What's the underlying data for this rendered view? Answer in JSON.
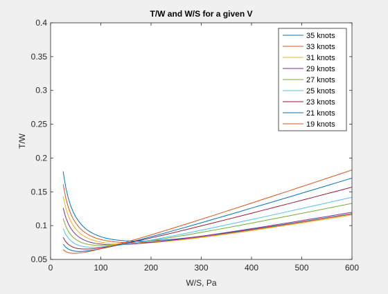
{
  "chart_data": {
    "type": "line",
    "title": "T/W and W/S for a given V",
    "xlabel": "W/S, Pa",
    "ylabel": "T/W",
    "xlim": [
      0,
      600
    ],
    "ylim": [
      0.05,
      0.4
    ],
    "xticks": [
      0,
      100,
      200,
      300,
      400,
      500,
      600
    ],
    "yticks": [
      0.05,
      0.1,
      0.15,
      0.2,
      0.25,
      0.3,
      0.35,
      0.4
    ],
    "xtick_labels": [
      "0",
      "100",
      "200",
      "300",
      "400",
      "500",
      "600"
    ],
    "ytick_labels": [
      "0.05",
      "0.1",
      "0.15",
      "0.2",
      "0.25",
      "0.3",
      "0.35",
      "0.4"
    ],
    "grid": false,
    "legend_position": "top-right",
    "x": [
      25,
      30,
      35,
      40,
      45,
      50,
      55,
      60,
      65,
      70,
      75,
      80,
      85,
      90,
      95,
      100,
      110,
      120,
      130,
      140,
      150,
      160,
      170,
      180,
      190,
      200,
      225,
      250,
      275,
      300,
      325,
      350,
      375,
      400,
      425,
      450,
      475,
      500,
      525,
      550,
      575,
      600
    ],
    "series": [
      {
        "name": "35 knots",
        "color": "#0072bd",
        "values": [
          0.1803,
          0.1573,
          0.1413,
          0.1294,
          0.1203,
          0.1131,
          0.1074,
          0.1026,
          0.0986,
          0.0953,
          0.0925,
          0.0902,
          0.0882,
          0.0864,
          0.0849,
          0.0836,
          0.0815,
          0.0799,
          0.0788,
          0.078,
          0.0775,
          0.0772,
          0.0771,
          0.0771,
          0.0773,
          0.0776,
          0.0787,
          0.0802,
          0.0821,
          0.0843,
          0.0866,
          0.0891,
          0.0917,
          0.0944,
          0.0972,
          0.1,
          0.1029,
          0.1058,
          0.1087,
          0.1117,
          0.1147,
          0.1177
        ]
      },
      {
        "name": "33 knots",
        "color": "#d95319",
        "values": [
          0.1612,
          0.1415,
          0.1278,
          0.1177,
          0.1099,
          0.1039,
          0.099,
          0.095,
          0.0917,
          0.0889,
          0.0866,
          0.0847,
          0.083,
          0.0816,
          0.0804,
          0.0794,
          0.0777,
          0.0766,
          0.0758,
          0.0752,
          0.075,
          0.0749,
          0.0749,
          0.0751,
          0.0754,
          0.0758,
          0.0771,
          0.0788,
          0.0809,
          0.0831,
          0.0855,
          0.0881,
          0.0908,
          0.0936,
          0.0964,
          0.0993,
          0.1022,
          0.1051,
          0.1081,
          0.1111,
          0.1141,
          0.1172
        ]
      },
      {
        "name": "31 knots",
        "color": "#edb120",
        "values": [
          0.1433,
          0.1267,
          0.1151,
          0.1066,
          0.1001,
          0.0951,
          0.0911,
          0.0879,
          0.0852,
          0.0829,
          0.0811,
          0.0796,
          0.0783,
          0.0772,
          0.0763,
          0.0755,
          0.0744,
          0.0736,
          0.0731,
          0.0729,
          0.0729,
          0.073,
          0.0733,
          0.0737,
          0.0741,
          0.0747,
          0.0762,
          0.078,
          0.0801,
          0.0824,
          0.0848,
          0.0873,
          0.0899,
          0.0926,
          0.0954,
          0.0982,
          0.101,
          0.1039,
          0.1068,
          0.1097,
          0.1127,
          0.1157
        ]
      },
      {
        "name": "29 knots",
        "color": "#7e2f8e",
        "values": [
          0.1263,
          0.1126,
          0.1032,
          0.0963,
          0.0911,
          0.0871,
          0.0839,
          0.0814,
          0.0794,
          0.0777,
          0.0763,
          0.0752,
          0.0743,
          0.0736,
          0.073,
          0.0726,
          0.0719,
          0.0716,
          0.0716,
          0.0718,
          0.0721,
          0.0726,
          0.0732,
          0.0738,
          0.0745,
          0.0752,
          0.0772,
          0.0794,
          0.0818,
          0.0843,
          0.087,
          0.0898,
          0.0926,
          0.0955,
          0.0984,
          0.1014,
          0.1044,
          0.1074,
          0.1105,
          0.1135,
          0.1166,
          0.1197
        ]
      },
      {
        "name": "27 knots",
        "color": "#77ac30",
        "values": [
          0.1105,
          0.0995,
          0.092,
          0.0866,
          0.0826,
          0.0796,
          0.0773,
          0.0755,
          0.0741,
          0.073,
          0.0722,
          0.0716,
          0.0712,
          0.0709,
          0.0707,
          0.0706,
          0.0707,
          0.0711,
          0.0716,
          0.0722,
          0.073,
          0.0738,
          0.0747,
          0.0757,
          0.0767,
          0.0778,
          0.0806,
          0.0836,
          0.0867,
          0.09,
          0.0933,
          0.0967,
          0.1002,
          0.1037,
          0.1073,
          0.1109,
          0.1145,
          0.1182,
          0.1218,
          0.1255,
          0.1292,
          0.1329
        ]
      },
      {
        "name": "25 knots",
        "color": "#4dbeee",
        "values": [
          0.0958,
          0.0873,
          0.0816,
          0.0776,
          0.0747,
          0.0726,
          0.071,
          0.0699,
          0.0691,
          0.0686,
          0.0682,
          0.068,
          0.068,
          0.0681,
          0.0682,
          0.0684,
          0.069,
          0.0697,
          0.0706,
          0.0715,
          0.0726,
          0.0737,
          0.0749,
          0.0761,
          0.0774,
          0.0787,
          0.0821,
          0.0857,
          0.0894,
          0.0932,
          0.0971,
          0.101,
          0.105,
          0.109,
          0.113,
          0.1171,
          0.1212,
          0.1253,
          0.1294,
          0.1336,
          0.1377,
          0.1419
        ]
      },
      {
        "name": "23 knots",
        "color": "#a2142f",
        "values": [
          0.0826,
          0.0764,
          0.0724,
          0.0698,
          0.068,
          0.0668,
          0.066,
          0.0656,
          0.0654,
          0.0653,
          0.0654,
          0.0656,
          0.0659,
          0.0663,
          0.0667,
          0.0672,
          0.0683,
          0.0696,
          0.0709,
          0.0723,
          0.0738,
          0.0753,
          0.0769,
          0.0785,
          0.0801,
          0.0818,
          0.0861,
          0.0905,
          0.095,
          0.0996,
          0.1042,
          0.1089,
          0.1136,
          0.1183,
          0.1231,
          0.1279,
          0.1327,
          0.1375,
          0.1423,
          0.1472,
          0.152,
          0.1569
        ]
      },
      {
        "name": "21 knots",
        "color": "#0072bd",
        "values": [
          0.0726,
          0.0681,
          0.0654,
          0.0637,
          0.0627,
          0.0621,
          0.0619,
          0.0619,
          0.0621,
          0.0624,
          0.0628,
          0.0633,
          0.0638,
          0.0644,
          0.0651,
          0.0658,
          0.0672,
          0.0688,
          0.0705,
          0.0722,
          0.074,
          0.0759,
          0.0777,
          0.0796,
          0.0816,
          0.0835,
          0.0885,
          0.0937,
          0.0989,
          0.1042,
          0.1096,
          0.115,
          0.1204,
          0.1259,
          0.1314,
          0.1369,
          0.1424,
          0.148,
          0.1535,
          0.1591,
          0.1647,
          0.1703
        ]
      },
      {
        "name": "19 knots",
        "color": "#d95319",
        "values": [
          0.0645,
          0.0616,
          0.0601,
          0.0593,
          0.0591,
          0.0591,
          0.0594,
          0.0598,
          0.0603,
          0.0609,
          0.0616,
          0.0623,
          0.0631,
          0.064,
          0.0648,
          0.0657,
          0.0675,
          0.0694,
          0.0714,
          0.0734,
          0.0755,
          0.0776,
          0.0797,
          0.0819,
          0.0841,
          0.0863,
          0.0919,
          0.0977,
          0.1035,
          0.1094,
          0.1153,
          0.1213,
          0.1273,
          0.1333,
          0.1394,
          0.1454,
          0.1515,
          0.1577,
          0.1638,
          0.17,
          0.1761,
          0.1823
        ]
      }
    ]
  }
}
